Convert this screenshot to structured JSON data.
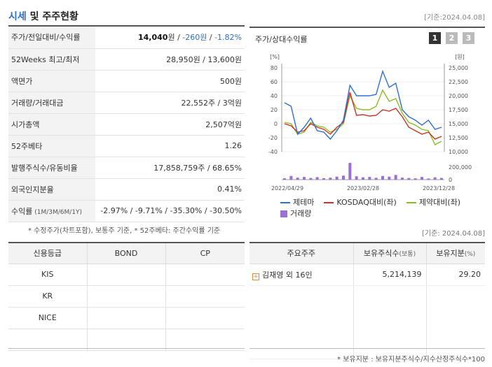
{
  "header": {
    "title_main": "시세",
    "title_rest": " 및 주주현황",
    "date": "[기준:2024.04.08]"
  },
  "price_table": [
    {
      "label": "주가/전일대비/수익률",
      "value_main": "14,040",
      "value_unit": "원 / ",
      "value_change": "-260원",
      "value_sep": " / ",
      "value_rate": "-1.82%"
    },
    {
      "label": "52Weeks 최고/최저",
      "value": "28,950원 / 13,600원"
    },
    {
      "label": "액면가",
      "value": "500원"
    },
    {
      "label": "거래량/거래대금",
      "value": "22,552주 / 3억원"
    },
    {
      "label": "시가총액",
      "value": "2,507억원"
    },
    {
      "label": "52주베타",
      "value": "1.26"
    },
    {
      "label": "발행주식수/유동비율",
      "value": "17,858,759주 / 68.65%"
    },
    {
      "label": "외국인지분율",
      "value": "0.41%"
    },
    {
      "label": "수익률",
      "label_sub": " (1M/3M/6M/1Y)",
      "value": "-2.97% / -9.71% / -35.30% / -30.50%"
    }
  ],
  "price_note": "* 수정주가(차트포함), 보통주 기준, * 52주베타: 주간수익률 기준",
  "chart_box": {
    "title": "주가/상대수익률",
    "pages": [
      "1",
      "2",
      "3"
    ],
    "legend": [
      "제테마",
      "KOSDAQ대비(좌)",
      "제약대비(좌)",
      "거래량"
    ]
  },
  "chart_data": {
    "type": "line",
    "x_labels": [
      "2022/04/29",
      "2023/02/28",
      "2023/12/28"
    ],
    "left_axis": {
      "unit": "[%]",
      "ticks": [
        80,
        60,
        40,
        20,
        0,
        -20,
        -40
      ],
      "range": [
        -40,
        80
      ]
    },
    "right_axis": {
      "unit": "[원]",
      "ticks": [
        "25,000",
        "22,500",
        "20,000",
        "17,500",
        "15,000",
        "12,500",
        "10,000"
      ],
      "range": [
        10000,
        25000
      ]
    },
    "volume_axis": {
      "ticks": [
        "200,000",
        "0"
      ],
      "range": [
        0,
        250000
      ]
    },
    "series": [
      {
        "name": "제테마",
        "color": "#2f6fd6",
        "values": [
          30,
          25,
          -15,
          -5,
          8,
          -10,
          -12,
          -22,
          -10,
          5,
          55,
          40,
          40,
          40,
          42,
          75,
          52,
          58,
          20,
          10,
          5,
          -2,
          5,
          -8,
          -5
        ]
      },
      {
        "name": "KOSDAQ대비(좌)",
        "color": "#cc3322",
        "values": [
          0,
          -3,
          -12,
          -10,
          0,
          -5,
          -8,
          -15,
          -5,
          2,
          45,
          12,
          13,
          11,
          12,
          20,
          18,
          22,
          10,
          -5,
          -10,
          -15,
          -12,
          -22,
          -18
        ]
      },
      {
        "name": "제약대비(좌)",
        "color": "#8bbd27",
        "values": [
          2,
          0,
          -15,
          -12,
          2,
          -3,
          -5,
          -12,
          -8,
          0,
          40,
          22,
          20,
          20,
          25,
          48,
          32,
          36,
          15,
          2,
          -2,
          -8,
          -10,
          -30,
          -25
        ]
      }
    ],
    "volume": [
      20000,
      55000,
      30000,
      40000,
      25000,
      38000,
      22000,
      30000,
      45000,
      60000,
      250000,
      50000,
      35000,
      40000,
      28000,
      55000,
      45000,
      70000,
      30000,
      25000,
      20000,
      40000,
      18000,
      35000,
      25000
    ]
  },
  "date2": "[기준: 2024.04.08]",
  "credit_table": {
    "headers": [
      "신용등급",
      "BOND",
      "CP"
    ],
    "rows": [
      [
        "KIS",
        "",
        ""
      ],
      [
        "KR",
        "",
        ""
      ],
      [
        "NICE",
        "",
        ""
      ],
      [
        "",
        "",
        ""
      ]
    ]
  },
  "share_table": {
    "headers": [
      "주요주주",
      "보유주식수",
      "(보통)",
      "보유지분",
      "(%)"
    ],
    "rows": [
      [
        "김재영 외 16인",
        "5,214,139",
        "29.20"
      ]
    ]
  },
  "share_note": "* 보유지분 : 보유지분주식수/지수산정주식수*100"
}
